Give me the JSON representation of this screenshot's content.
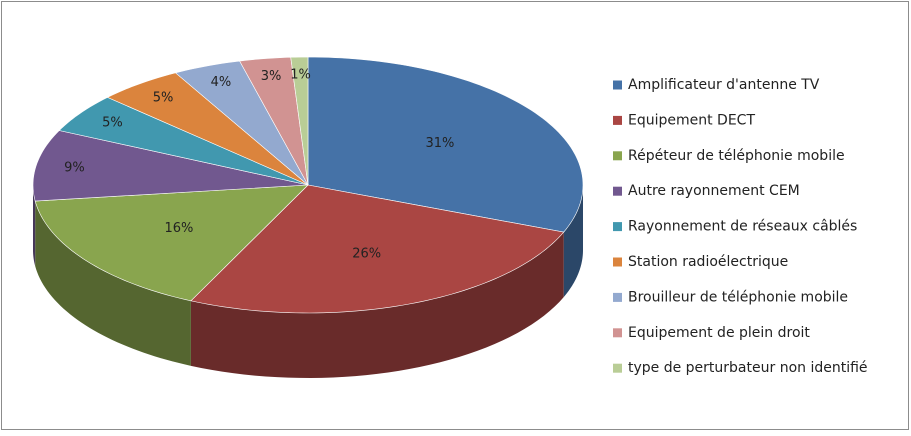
{
  "chart_data": {
    "type": "pie",
    "categories": [
      "Amplificateur d'antenne TV",
      "Equipement DECT",
      "Répéteur de téléphonie mobile",
      "Autre rayonnement CEM",
      "Rayonnement de réseaux câblés",
      "Station radioélectrique",
      "Brouilleur de téléphonie mobile",
      "Equipement de plein droit",
      "type de perturbateur non identifié"
    ],
    "values": [
      31,
      26,
      16,
      9,
      5,
      5,
      4,
      3,
      1
    ],
    "value_labels": [
      "31%",
      "26%",
      "16%",
      "9%",
      "5%",
      "5%",
      "4%",
      "3%",
      "1%"
    ],
    "colors": [
      "#4572a7",
      "#aa4643",
      "#89a54e",
      "#71588f",
      "#4198af",
      "#db843d",
      "#93a9cf",
      "#d19392",
      "#b9cd96"
    ],
    "legend": "right"
  }
}
